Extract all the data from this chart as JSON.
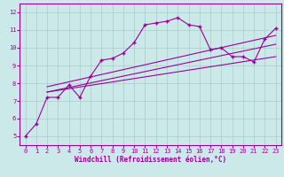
{
  "xlabel": "Windchill (Refroidissement éolien,°C)",
  "bg_color": "#cce9e9",
  "grid_color": "#aacccc",
  "line_color": "#990099",
  "marker": "+",
  "xlim": [
    -0.5,
    23.5
  ],
  "ylim": [
    4.5,
    12.5
  ],
  "xticks": [
    0,
    1,
    2,
    3,
    4,
    5,
    6,
    7,
    8,
    9,
    10,
    11,
    12,
    13,
    14,
    15,
    16,
    17,
    18,
    19,
    20,
    21,
    22,
    23
  ],
  "yticks": [
    5,
    6,
    7,
    8,
    9,
    10,
    11,
    12
  ],
  "series": {
    "line1": {
      "x": [
        0,
        1,
        2,
        3,
        4,
        5,
        6,
        7,
        8,
        9,
        10,
        11,
        12,
        13,
        14,
        15,
        16,
        17,
        18,
        19,
        20,
        21,
        22,
        23
      ],
      "y": [
        5.0,
        5.7,
        7.2,
        7.2,
        7.9,
        7.2,
        8.4,
        9.3,
        9.4,
        9.7,
        10.3,
        11.3,
        11.4,
        11.5,
        11.7,
        11.3,
        11.2,
        9.9,
        10.0,
        9.5,
        9.5,
        9.2,
        10.5,
        11.1
      ]
    },
    "line2": {
      "x": [
        2,
        23
      ],
      "y": [
        7.5,
        9.5
      ]
    },
    "line3": {
      "x": [
        2,
        23
      ],
      "y": [
        7.5,
        10.2
      ]
    },
    "line4": {
      "x": [
        2,
        23
      ],
      "y": [
        7.8,
        10.7
      ]
    }
  }
}
